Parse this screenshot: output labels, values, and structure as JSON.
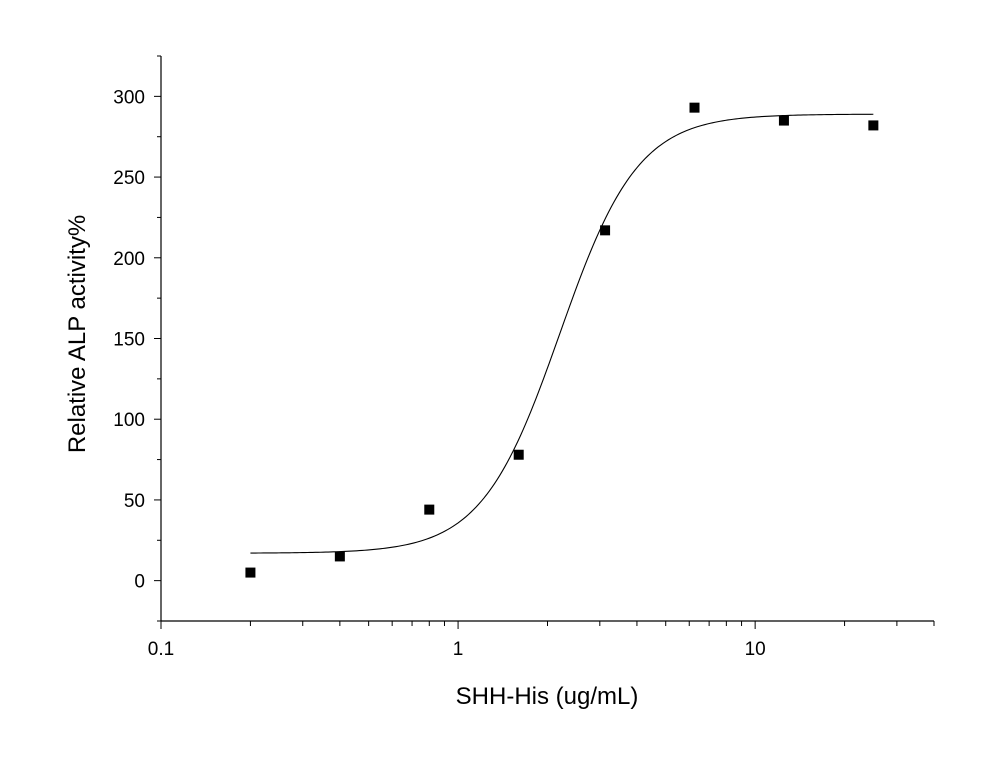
{
  "chart_data": {
    "type": "scatter",
    "x_scale": "log",
    "xlabel": "SHH-His (ug/mL)",
    "ylabel": "Relative ALP activity%",
    "xlim": [
      0.1,
      40
    ],
    "ylim": [
      -25,
      325
    ],
    "x_ticks": [
      0.1,
      1,
      10
    ],
    "x_tick_labels": [
      "0.1",
      "1",
      "10"
    ],
    "y_ticks": [
      0,
      50,
      100,
      150,
      200,
      250,
      300
    ],
    "y_tick_labels": [
      "0",
      "50",
      "100",
      "150",
      "200",
      "250",
      "300"
    ],
    "grid": false,
    "legend": "none",
    "series": [
      {
        "points": [
          {
            "x": 0.2,
            "y": 5
          },
          {
            "x": 0.4,
            "y": 15
          },
          {
            "x": 0.8,
            "y": 44
          },
          {
            "x": 1.6,
            "y": 78
          },
          {
            "x": 3.125,
            "y": 217
          },
          {
            "x": 6.25,
            "y": 293
          },
          {
            "x": 12.5,
            "y": 285
          },
          {
            "x": 25,
            "y": 282
          }
        ],
        "marker": "square",
        "color": "#000000"
      }
    ],
    "fit_curve": {
      "model": "4-parameter logistic",
      "bottom": 17,
      "top": 289,
      "ec50": 2.2,
      "hill": 3.3,
      "x_range": [
        0.2,
        25
      ],
      "color": "#000000"
    }
  }
}
